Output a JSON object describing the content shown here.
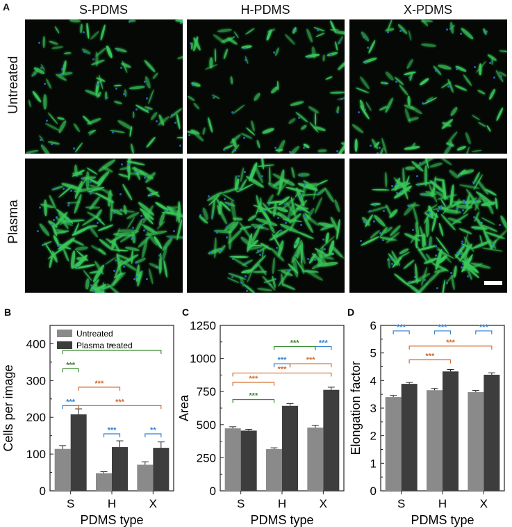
{
  "figure": {
    "panel_a_letter": "A",
    "columns": [
      "S-PDMS",
      "H-PDMS",
      "X-PDMS"
    ],
    "rows": [
      "Untreated",
      "Plasma"
    ],
    "colors": {
      "untreated_bar": "#8a8a8a",
      "plasma_bar": "#3d3d3d",
      "green_sig": "#3a8a2e",
      "blue_sig": "#2f7fd0",
      "orange_sig": "#d2692a",
      "cell_green": "#39c85a",
      "nuclei_blue": "#2a6bd8"
    }
  },
  "chart_data": [
    {
      "panel": "B",
      "type": "bar",
      "categories": [
        "S",
        "H",
        "X"
      ],
      "xlabel": "PDMS type",
      "ylabel": "Cells per image",
      "ylim": [
        0,
        450
      ],
      "yticks": [
        0,
        100,
        200,
        300,
        400
      ],
      "legend": {
        "placement": "top-left",
        "entries": [
          "Untreated",
          "Plasma treated"
        ]
      },
      "series": [
        {
          "name": "Untreated",
          "values": [
            114,
            48,
            71
          ],
          "errors": [
            9,
            4,
            8
          ]
        },
        {
          "name": "Plasma treated",
          "values": [
            208,
            119,
            117
          ],
          "errors": [
            15,
            17,
            16
          ]
        }
      ],
      "brackets": [
        {
          "from": [
            0,
            0
          ],
          "to": [
            0,
            1
          ],
          "level": 232,
          "label": "***",
          "color": "blue"
        },
        {
          "from": [
            1,
            0
          ],
          "to": [
            1,
            1
          ],
          "level": 155,
          "label": "***",
          "color": "blue"
        },
        {
          "from": [
            2,
            0
          ],
          "to": [
            2,
            1
          ],
          "level": 155,
          "label": "**",
          "color": "blue"
        },
        {
          "from": [
            0,
            1
          ],
          "to": [
            2,
            1
          ],
          "level": 232,
          "label": "***",
          "color": "orange"
        },
        {
          "from": [
            0,
            1
          ],
          "to": [
            1,
            1
          ],
          "level": 282,
          "label": "***",
          "color": "orange"
        },
        {
          "from": [
            0,
            0
          ],
          "to": [
            0,
            1
          ],
          "level": 332,
          "label": "***",
          "color": "green"
        },
        {
          "from": [
            0,
            0
          ],
          "to": [
            2,
            1
          ],
          "level": 382,
          "label": "*",
          "color": "green"
        }
      ]
    },
    {
      "panel": "C",
      "type": "bar",
      "categories": [
        "S",
        "H",
        "X"
      ],
      "xlabel": "PDMS type",
      "ylabel": "Area",
      "ylim": [
        0,
        1250
      ],
      "yticks": [
        0,
        250,
        500,
        750,
        1000,
        1250
      ],
      "series": [
        {
          "name": "Untreated",
          "values": [
            472,
            315,
            478
          ],
          "errors": [
            12,
            10,
            18
          ]
        },
        {
          "name": "Plasma treated",
          "values": [
            455,
            642,
            763
          ],
          "errors": [
            10,
            18,
            20
          ]
        }
      ],
      "brackets": [
        {
          "from": [
            1,
            0
          ],
          "to": [
            1,
            1
          ],
          "level": 960,
          "label": "***",
          "color": "blue"
        },
        {
          "from": [
            2,
            0
          ],
          "to": [
            2,
            1
          ],
          "level": 1090,
          "label": "***",
          "color": "blue"
        },
        {
          "from": [
            1,
            1
          ],
          "to": [
            2,
            1
          ],
          "level": 960,
          "label": "***",
          "color": "orange"
        },
        {
          "from": [
            0,
            0
          ],
          "to": [
            1,
            0
          ],
          "level": 820,
          "label": "***",
          "color": "orange"
        },
        {
          "from": [
            0,
            0
          ],
          "to": [
            2,
            1
          ],
          "level": 890,
          "label": "***",
          "color": "orange"
        },
        {
          "from": [
            0,
            0
          ],
          "to": [
            1,
            0
          ],
          "level": 690,
          "label": "***",
          "color": "green"
        },
        {
          "from": [
            1,
            0
          ],
          "to": [
            2,
            0
          ],
          "level": 1090,
          "label": "***",
          "color": "green"
        }
      ]
    },
    {
      "panel": "D",
      "type": "bar",
      "categories": [
        "S",
        "H",
        "X"
      ],
      "xlabel": "PDMS type",
      "ylabel": "Elongation factor",
      "ylim": [
        0,
        6
      ],
      "yticks": [
        0,
        1,
        2,
        3,
        4,
        5,
        6
      ],
      "series": [
        {
          "name": "Untreated",
          "values": [
            3.4,
            3.65,
            3.58
          ],
          "errors": [
            0.06,
            0.06,
            0.06
          ]
        },
        {
          "name": "Plasma treated",
          "values": [
            3.88,
            4.33,
            4.21
          ],
          "errors": [
            0.05,
            0.07,
            0.07
          ]
        }
      ],
      "brackets": [
        {
          "from": [
            0,
            0
          ],
          "to": [
            0,
            1
          ],
          "level": 5.8,
          "label": "***",
          "color": "blue"
        },
        {
          "from": [
            1,
            0
          ],
          "to": [
            1,
            1
          ],
          "level": 5.8,
          "label": "***",
          "color": "blue"
        },
        {
          "from": [
            2,
            0
          ],
          "to": [
            2,
            1
          ],
          "level": 5.8,
          "label": "***",
          "color": "blue"
        },
        {
          "from": [
            0,
            1
          ],
          "to": [
            1,
            1
          ],
          "level": 4.75,
          "label": "***",
          "color": "orange"
        },
        {
          "from": [
            0,
            1
          ],
          "to": [
            2,
            1
          ],
          "level": 5.25,
          "label": "***",
          "color": "orange"
        }
      ]
    }
  ]
}
